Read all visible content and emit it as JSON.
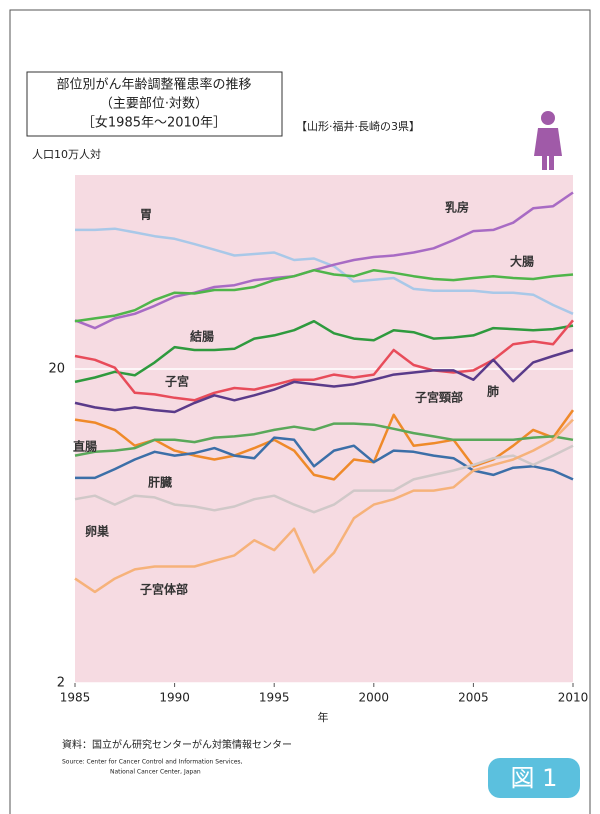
{
  "chart_data": {
    "type": "line",
    "title": [
      "部位別がん年齢調整罹患率の推移",
      "（主要部位·対数）",
      "［女1985年〜2010年］"
    ],
    "subtitle": "【山形·福井·長崎の3県】",
    "y_label": "人口10万人対",
    "x_label": "年",
    "source": [
      "資料：国立がん研究センターがん対策情報センター",
      "Source: Center for Cancer Control and Information Services,",
      "National Cancer Center, Japan"
    ],
    "figure_label": "図 1",
    "log_scale": true,
    "grid": true,
    "xlim": [
      1985,
      2010
    ],
    "xticks": [
      1985,
      1990,
      1995,
      2000,
      2005,
      2010
    ],
    "ylim": [
      2,
      83
    ],
    "yticks": [
      2,
      20
    ],
    "x": [
      1985,
      1986,
      1987,
      1988,
      1989,
      1990,
      1991,
      1992,
      1993,
      1994,
      1995,
      1996,
      1997,
      1998,
      1999,
      2000,
      2001,
      2002,
      2003,
      2004,
      2005,
      2006,
      2007,
      2008,
      2009,
      2010
    ],
    "series": [
      {
        "name": "胃",
        "color": "#a9c8e8",
        "values": [
          55.5,
          55.5,
          56,
          54.5,
          53,
          52,
          50,
          48,
          46,
          46.5,
          47,
          44.5,
          45,
          42.5,
          38,
          38.5,
          39,
          36,
          35.5,
          35.5,
          35.5,
          35,
          35,
          34.5,
          32,
          30
        ]
      },
      {
        "name": "乳房",
        "color": "#a86bc4",
        "values": [
          28.6,
          27,
          29,
          30,
          31.8,
          34,
          35,
          36.5,
          37,
          38.4,
          39,
          39.5,
          41.3,
          43,
          44.5,
          45.5,
          46,
          47,
          48.5,
          51.5,
          55,
          55.5,
          58.5,
          65,
          66,
          73
        ]
      },
      {
        "name": "大腸",
        "color": "#4fb54a",
        "values": [
          28.4,
          29,
          29.6,
          30.8,
          33.2,
          35,
          34.8,
          35.7,
          35.7,
          36.5,
          38.4,
          39.5,
          41.3,
          40,
          39.5,
          41.3,
          40.5,
          39.5,
          38.7,
          38.4,
          39,
          39.5,
          39,
          38.7,
          39.5,
          40
        ]
      },
      {
        "name": "結腸",
        "color": "#2f9a3e",
        "values": [
          18.2,
          18.8,
          19.6,
          19.1,
          21,
          23.5,
          23,
          23,
          23.2,
          25,
          25.6,
          26.6,
          28.4,
          26,
          25,
          24.7,
          26.6,
          26.2,
          25,
          25.2,
          25.6,
          27,
          26.8,
          26.6,
          26.8,
          27.5
        ]
      },
      {
        "name": "子宮",
        "color": "#e84c5a",
        "values": [
          22,
          21.4,
          20.2,
          16.8,
          16.6,
          16.2,
          15.9,
          16.8,
          17.4,
          17.2,
          17.8,
          18.5,
          18.5,
          19.2,
          18.8,
          19.2,
          23,
          20.6,
          19.8,
          19.5,
          19.8,
          21.4,
          24,
          24.5,
          24,
          28.6
        ]
      },
      {
        "name": "肺",
        "color": "#5a3b8a",
        "values": [
          15.6,
          15.1,
          14.8,
          15.1,
          14.8,
          14.6,
          15.6,
          16.5,
          15.9,
          16.5,
          17.2,
          18.2,
          17.9,
          17.6,
          17.9,
          18.5,
          19.2,
          19.5,
          19.8,
          19.8,
          18.5,
          21.4,
          18.3,
          21,
          22,
          23
        ]
      },
      {
        "name": "子宮頸部",
        "color": "#ef8a2a",
        "values": [
          13.8,
          13.5,
          12.8,
          11.4,
          11.9,
          11,
          10.6,
          10.3,
          10.6,
          11.2,
          11.9,
          11,
          9.2,
          8.9,
          10.3,
          10.1,
          14.3,
          11.4,
          11.6,
          11.9,
          9.8,
          10.3,
          11.4,
          12.8,
          12.1,
          14.8
        ]
      },
      {
        "name": "直腸",
        "color": "#5aa85a",
        "values": [
          10.6,
          10.9,
          11,
          11.2,
          11.9,
          11.9,
          11.7,
          12.1,
          12.2,
          12.4,
          12.8,
          13.1,
          12.8,
          13.4,
          13.4,
          13.3,
          12.9,
          12.5,
          12.2,
          11.9,
          11.9,
          11.9,
          11.9,
          12.1,
          12.2,
          11.9
        ]
      },
      {
        "name": "肝臓",
        "color": "#3c6fa8",
        "values": [
          9,
          9,
          9.6,
          10.3,
          10.9,
          10.6,
          10.8,
          11.2,
          10.6,
          10.4,
          12.1,
          11.9,
          9.8,
          11,
          11.4,
          10.1,
          11,
          10.9,
          10.6,
          10.4,
          9.5,
          9.2,
          9.7,
          9.8,
          9.5,
          8.9
        ]
      },
      {
        "name": "卵巣",
        "color": "#d0c8c8",
        "values": [
          7.7,
          7.9,
          7.4,
          7.9,
          7.8,
          7.4,
          7.3,
          7.1,
          7.3,
          7.7,
          7.9,
          7.4,
          7.0,
          7.4,
          8.2,
          8.2,
          8.2,
          8.9,
          9.2,
          9.5,
          9.9,
          10.4,
          10.6,
          9.9,
          10.6,
          11.4
        ]
      },
      {
        "name": "子宮体部",
        "color": "#f6b27a",
        "values": [
          4.3,
          3.9,
          4.3,
          4.6,
          4.7,
          4.7,
          4.7,
          4.9,
          5.1,
          5.7,
          5.3,
          6.2,
          4.5,
          5.2,
          6.7,
          7.4,
          7.7,
          8.2,
          8.2,
          8.4,
          9.5,
          9.9,
          10.3,
          11,
          11.9,
          13.8
        ]
      }
    ]
  }
}
